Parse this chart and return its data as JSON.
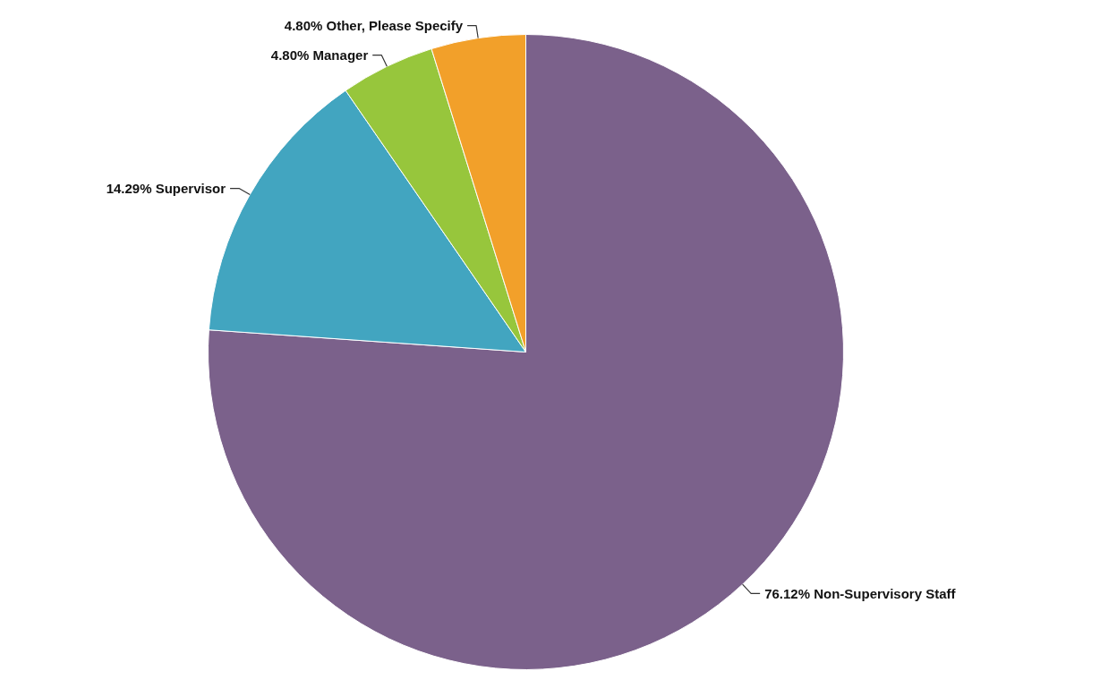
{
  "chart_data": {
    "type": "pie",
    "categories": [
      "Non-Supervisory Staff",
      "Supervisor",
      "Manager",
      "Other, Please Specify"
    ],
    "values": [
      76.12,
      14.29,
      4.8,
      4.8
    ],
    "value_labels": [
      "76.12%",
      "14.29%",
      "4.80%",
      "4.80%"
    ],
    "colors": [
      "#7b618b",
      "#42a5c0",
      "#97c63c",
      "#f2a02a"
    ],
    "legend": false
  }
}
